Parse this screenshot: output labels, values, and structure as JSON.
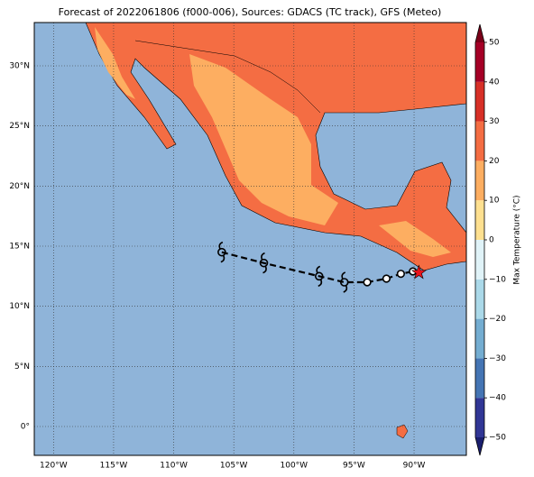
{
  "chart_data": {
    "type": "map",
    "title": "Forecast of 2022061806 (f000-006), Sources: GDACS (TC track), GFS (Meteo)",
    "xlim": [
      -121.6,
      -85.65
    ],
    "ylim": [
      -2.4,
      33.6
    ],
    "xticks": [
      {
        "value": -120,
        "label": "120°W"
      },
      {
        "value": -115,
        "label": "115°W"
      },
      {
        "value": -110,
        "label": "110°W"
      },
      {
        "value": -105,
        "label": "105°W"
      },
      {
        "value": -100,
        "label": "100°W"
      },
      {
        "value": -95,
        "label": "95°W"
      },
      {
        "value": -90,
        "label": "90°W"
      }
    ],
    "yticks": [
      {
        "value": 0,
        "label": "0°"
      },
      {
        "value": 5,
        "label": "5°N"
      },
      {
        "value": 10,
        "label": "10°N"
      },
      {
        "value": 15,
        "label": "15°N"
      },
      {
        "value": 20,
        "label": "20°N"
      },
      {
        "value": 25,
        "label": "25°N"
      },
      {
        "value": 30,
        "label": "30°N"
      }
    ],
    "grid": true,
    "track": {
      "lon": [
        -106.0,
        -102.5,
        -97.9,
        -95.8,
        -93.9,
        -92.3,
        -91.1,
        -90.1
      ],
      "lat": [
        14.5,
        13.6,
        12.5,
        12.0,
        12.0,
        12.3,
        12.7,
        12.9
      ],
      "marker": [
        "storm",
        "storm",
        "storm",
        "storm",
        "circle",
        "circle",
        "circle",
        "circle"
      ],
      "color": "#000000"
    },
    "current_position": {
      "lon": -89.6,
      "lat": 12.8,
      "color": "#e8141b"
    },
    "colorbar": {
      "label": "Max Temperature (°C)",
      "lim": [
        -50,
        50
      ],
      "ticks": [
        {
          "value": -50,
          "label": "−50"
        },
        {
          "value": -40,
          "label": "−40"
        },
        {
          "value": -30,
          "label": "−30"
        },
        {
          "value": -20,
          "label": "−20"
        },
        {
          "value": -10,
          "label": "−10"
        },
        0,
        10,
        20,
        30,
        40,
        50
      ],
      "colors": [
        "#313695",
        "#4575b4",
        "#74add1",
        "#abd9e9",
        "#e0f3f8",
        "#fee090",
        "#fdae61",
        "#f46d43",
        "#d73027",
        "#a50026"
      ],
      "under_color": "#1a1e6e",
      "over_color": "#7a0019"
    }
  }
}
